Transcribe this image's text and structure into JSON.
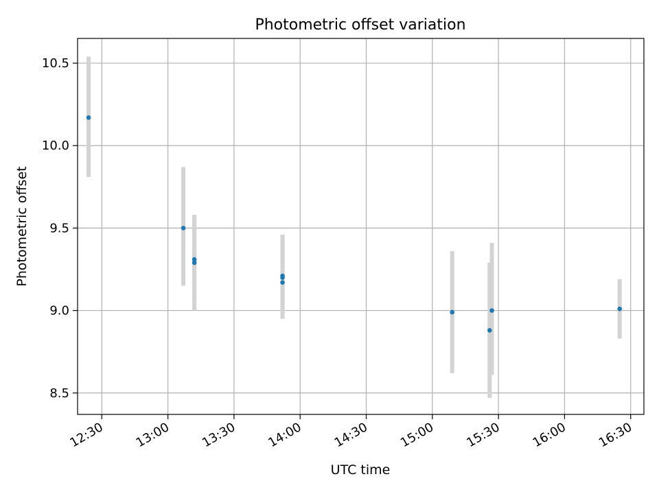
{
  "chart_data": {
    "type": "scatter",
    "title": "Photometric offset variation",
    "xlabel": "UTC time",
    "ylabel": "Photometric offset",
    "x_unit": "time (HH:MM UTC)",
    "xlim": [
      "12:19",
      "16:36"
    ],
    "ylim": [
      8.37,
      10.65
    ],
    "x_ticks": [
      "12:30",
      "13:00",
      "13:30",
      "14:00",
      "14:30",
      "15:00",
      "15:30",
      "16:00",
      "16:30"
    ],
    "y_ticks": [
      "8.5",
      "9.0",
      "9.5",
      "10.0",
      "10.5"
    ],
    "grid": true,
    "error_bar_color": "#d3d3d3",
    "point_color": "#1f77b4",
    "points": [
      {
        "x": "12:24",
        "y": 10.17,
        "err_low": 9.81,
        "err_high": 10.54
      },
      {
        "x": "13:07",
        "y": 9.5,
        "err_low": 9.15,
        "err_high": 9.87
      },
      {
        "x": "13:12",
        "y": 9.29,
        "err_low": 9.0,
        "err_high": 9.58
      },
      {
        "x": "13:12",
        "y": 9.31,
        "err_low": 9.06,
        "err_high": 9.57
      },
      {
        "x": "13:52",
        "y": 9.17,
        "err_low": 8.95,
        "err_high": 9.46
      },
      {
        "x": "13:52",
        "y": 9.21,
        "err_low": 8.96,
        "err_high": 9.45
      },
      {
        "x": "13:52",
        "y": 9.2,
        "err_low": 8.96,
        "err_high": 9.45
      },
      {
        "x": "15:09",
        "y": 8.99,
        "err_low": 8.62,
        "err_high": 9.36
      },
      {
        "x": "15:26",
        "y": 8.88,
        "err_low": 8.47,
        "err_high": 9.29
      },
      {
        "x": "15:27",
        "y": 9.0,
        "err_low": 8.61,
        "err_high": 9.41
      },
      {
        "x": "16:25",
        "y": 9.01,
        "err_low": 8.83,
        "err_high": 9.19
      }
    ]
  }
}
